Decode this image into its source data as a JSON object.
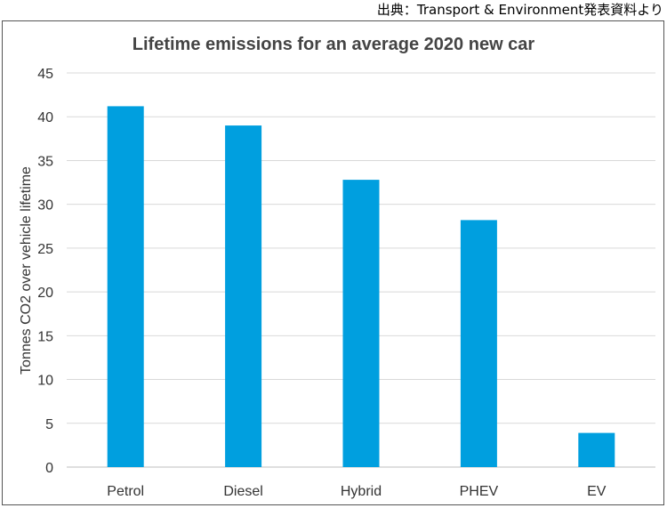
{
  "source_note": "出典：Transport & Environment発表資料より",
  "chart_data": {
    "type": "bar",
    "title": "Lifetime emissions for an average 2020 new car",
    "xlabel": "",
    "ylabel": "Tonnes CO2 over vehicle lifetime",
    "categories": [
      "Petrol",
      "Diesel",
      "Hybrid",
      "PHEV",
      "EV"
    ],
    "values": [
      41.2,
      39.0,
      32.8,
      28.2,
      3.9
    ],
    "ylim": [
      0,
      45
    ],
    "yticks": [
      0,
      5,
      10,
      15,
      20,
      25,
      30,
      35,
      40,
      45
    ],
    "grid": true,
    "bar_color": "#009fdf",
    "legend": "none"
  }
}
